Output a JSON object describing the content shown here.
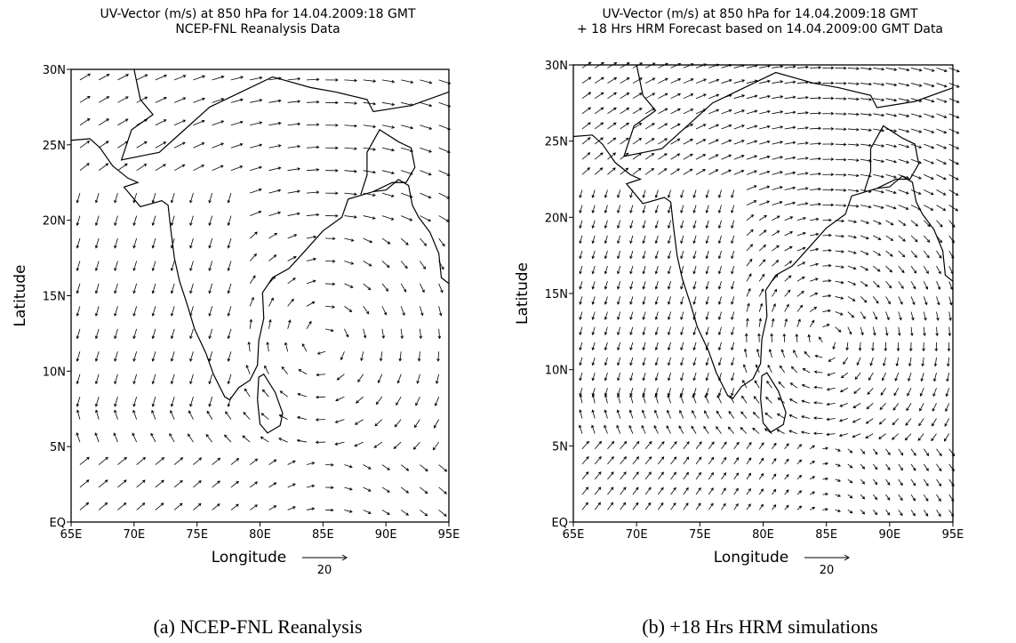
{
  "panels": [
    {
      "title": [
        "UV-Vector (m/s) at 850 hPa for 14.04.2009:18 GMT",
        "NCEP-FNL Reanalysis Data"
      ],
      "x_label": "Longitude",
      "y_label": "Latitude",
      "x_ticks": [
        "65E",
        "70E",
        "75E",
        "80E",
        "85E",
        "90E",
        "95E"
      ],
      "y_ticks": [
        "EQ",
        "5N",
        "10N",
        "15N",
        "20N",
        "25N",
        "30N"
      ],
      "reference_vector": "20",
      "caption": "(a)  NCEP-FNL Reanalysis"
    },
    {
      "title": [
        "UV-Vector (m/s) at 850 hPa for 14.04.2009:18 GMT",
        "+ 18 Hrs HRM Forecast based on 14.04.2009:00 GMT Data"
      ],
      "x_label": "Longitude",
      "y_label": "Latitude",
      "x_ticks": [
        "65E",
        "70E",
        "75E",
        "80E",
        "85E",
        "90E",
        "95E"
      ],
      "y_ticks": [
        "EQ",
        "5N",
        "10N",
        "15N",
        "20N",
        "25N",
        "30N"
      ],
      "reference_vector": "20",
      "caption": "(b)  +18 Hrs HRM simulations"
    }
  ]
}
